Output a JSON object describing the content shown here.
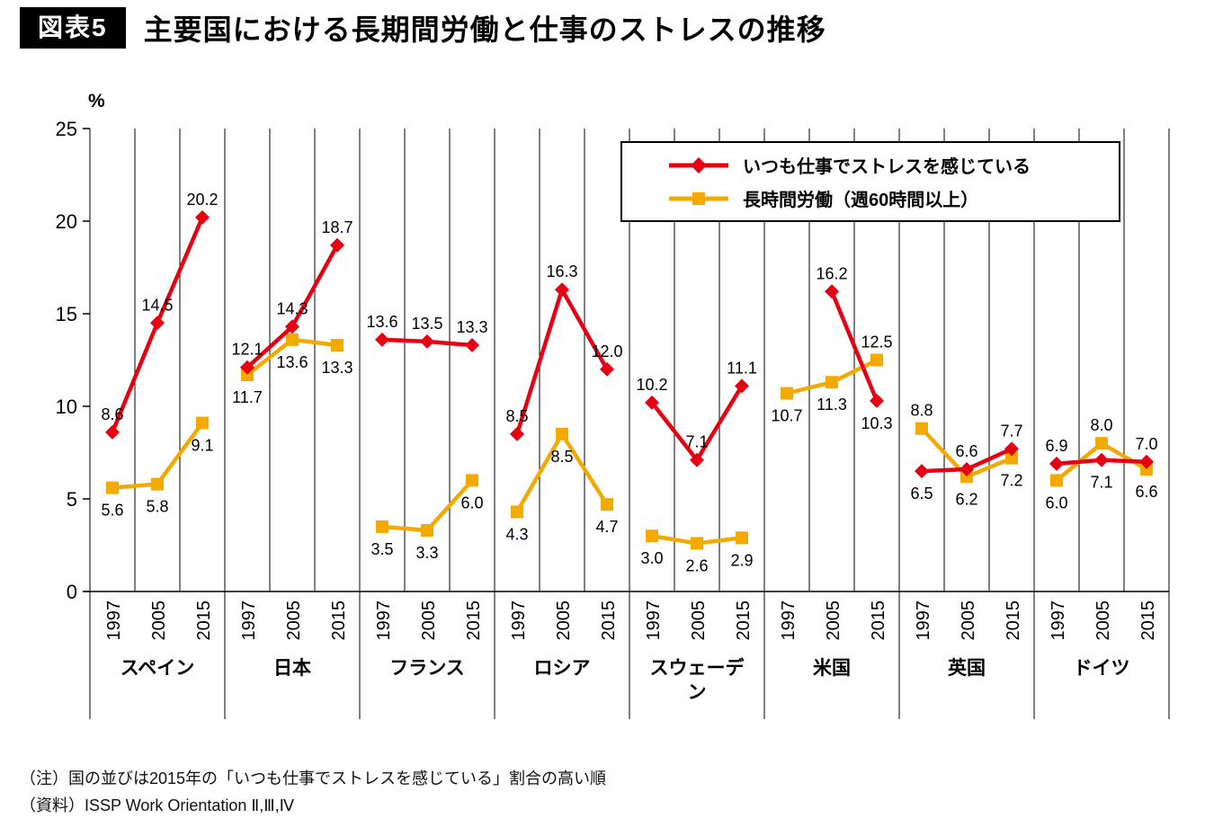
{
  "header": {
    "badge": "図表5",
    "title": "主要国における長期間労働と仕事のストレスの推移"
  },
  "notes": [
    "（注）国の並びは2015年の「いつも仕事でストレスを感じている」割合の高い順",
    "（資料）ISSP Work Orientation Ⅱ,Ⅲ,Ⅳ"
  ],
  "chart_data": {
    "type": "line",
    "title": "主要国における長期間労働と仕事のストレスの推移",
    "ylabel": "%",
    "ylim": [
      0,
      25
    ],
    "yticks": [
      0,
      5,
      10,
      15,
      20,
      25
    ],
    "grid": "vertical-only",
    "legend_position": "top-right-inside",
    "years": [
      "1997",
      "2005",
      "2015"
    ],
    "countries": [
      "スペイン",
      "日本",
      "フランス",
      "ロシア",
      "スウェーデン",
      "米国",
      "英国",
      "ドイツ"
    ],
    "series": [
      {
        "name": "いつも仕事でストレスを感じている",
        "color": "#e60012",
        "marker": "diamond",
        "values": [
          [
            8.6,
            14.5,
            20.2
          ],
          [
            12.1,
            14.3,
            18.7
          ],
          [
            13.6,
            13.5,
            13.3
          ],
          [
            8.5,
            16.3,
            12.0
          ],
          [
            10.2,
            7.1,
            11.1
          ],
          [
            null,
            16.2,
            10.3
          ],
          [
            6.5,
            6.6,
            7.7
          ],
          [
            6.9,
            7.1,
            7.0
          ]
        ],
        "label_pos": [
          [
            "above",
            "above",
            "above"
          ],
          [
            "above",
            "above",
            "above"
          ],
          [
            "above",
            "above",
            "above"
          ],
          [
            "above",
            "above",
            "above"
          ],
          [
            "above",
            "above",
            "above"
          ],
          [
            "above",
            "above",
            "below"
          ],
          [
            "below",
            "above",
            "above"
          ],
          [
            "above",
            "below",
            "above"
          ]
        ]
      },
      {
        "name": "長時間労働（週60時間以上）",
        "color": "#f2a900",
        "marker": "square",
        "values": [
          [
            5.6,
            5.8,
            9.1
          ],
          [
            11.7,
            13.6,
            13.3
          ],
          [
            3.5,
            3.3,
            6.0
          ],
          [
            4.3,
            8.5,
            4.7
          ],
          [
            3.0,
            2.6,
            2.9
          ],
          [
            10.7,
            11.3,
            12.5
          ],
          [
            8.8,
            6.2,
            7.2
          ],
          [
            6.0,
            8.0,
            6.6
          ]
        ],
        "label_pos": [
          [
            "below",
            "below",
            "below"
          ],
          [
            "below",
            "below",
            "below"
          ],
          [
            "below",
            "below",
            "below"
          ],
          [
            "below",
            "below",
            "below"
          ],
          [
            "below",
            "below",
            "below"
          ],
          [
            "below",
            "below",
            "above"
          ],
          [
            "above",
            "below",
            "below"
          ],
          [
            "below",
            "above",
            "below"
          ]
        ]
      }
    ]
  }
}
